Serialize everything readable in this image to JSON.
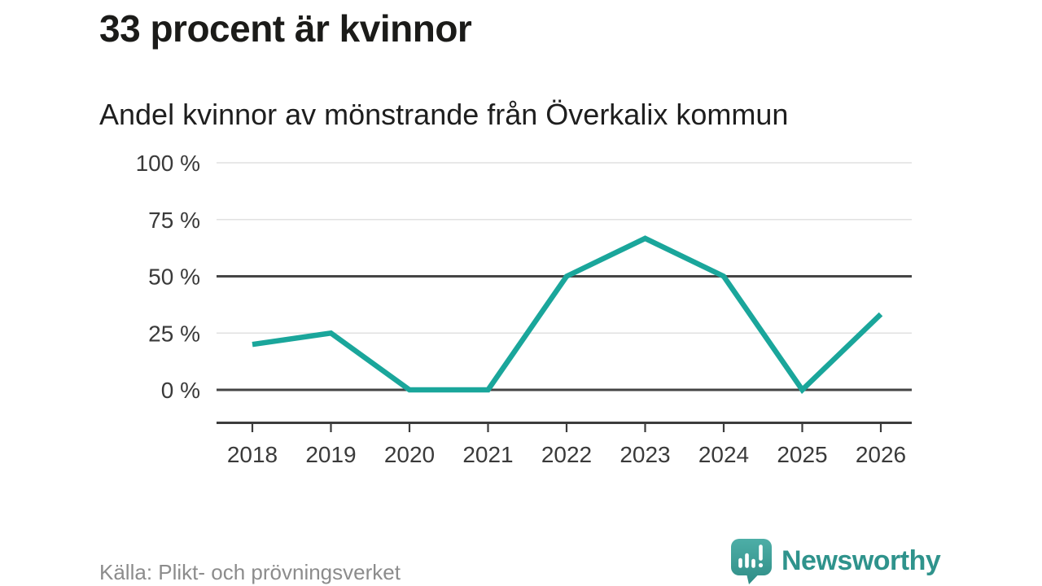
{
  "header": {
    "title": "33 procent är kvinnor",
    "subtitle": "Andel kvinnor av mönstrande från Överkalix kommun"
  },
  "footer": {
    "source": "Källa: Plikt- och prövningsverket",
    "brand": "Newsworthy"
  },
  "colors": {
    "accent": "#1AA69B",
    "grid_light": "#E1E1E1",
    "grid_dark": "#454545",
    "axis": "#3C3C3C",
    "tick_text": "#3A3A3A",
    "title_text": "#1B1B19",
    "muted_text": "#8C8C8C",
    "brand_teal": "#2F938C"
  },
  "chart_data": {
    "type": "line",
    "title": "33 procent är kvinnor",
    "subtitle": "Andel kvinnor av mönstrande från Överkalix kommun",
    "x": [
      2018,
      2019,
      2020,
      2021,
      2022,
      2023,
      2024,
      2025,
      2026
    ],
    "series": [
      {
        "name": "Andel kvinnor av mönstrande",
        "values": [
          20,
          25,
          0,
          0,
          50,
          66.7,
          50,
          0,
          33.3
        ]
      }
    ],
    "xlabel": "",
    "ylabel": "",
    "ylim": [
      0,
      100
    ],
    "yticks": [
      0,
      25,
      50,
      75,
      100
    ],
    "ytick_labels": [
      "0 %",
      "25 %",
      "50 %",
      "75 %",
      "100 %"
    ],
    "emphasized_gridlines": [
      0,
      50
    ],
    "grid": true,
    "legend": "none",
    "line_color": "#1AA69B",
    "source": "Källa: Plikt- och prövningsverket"
  }
}
